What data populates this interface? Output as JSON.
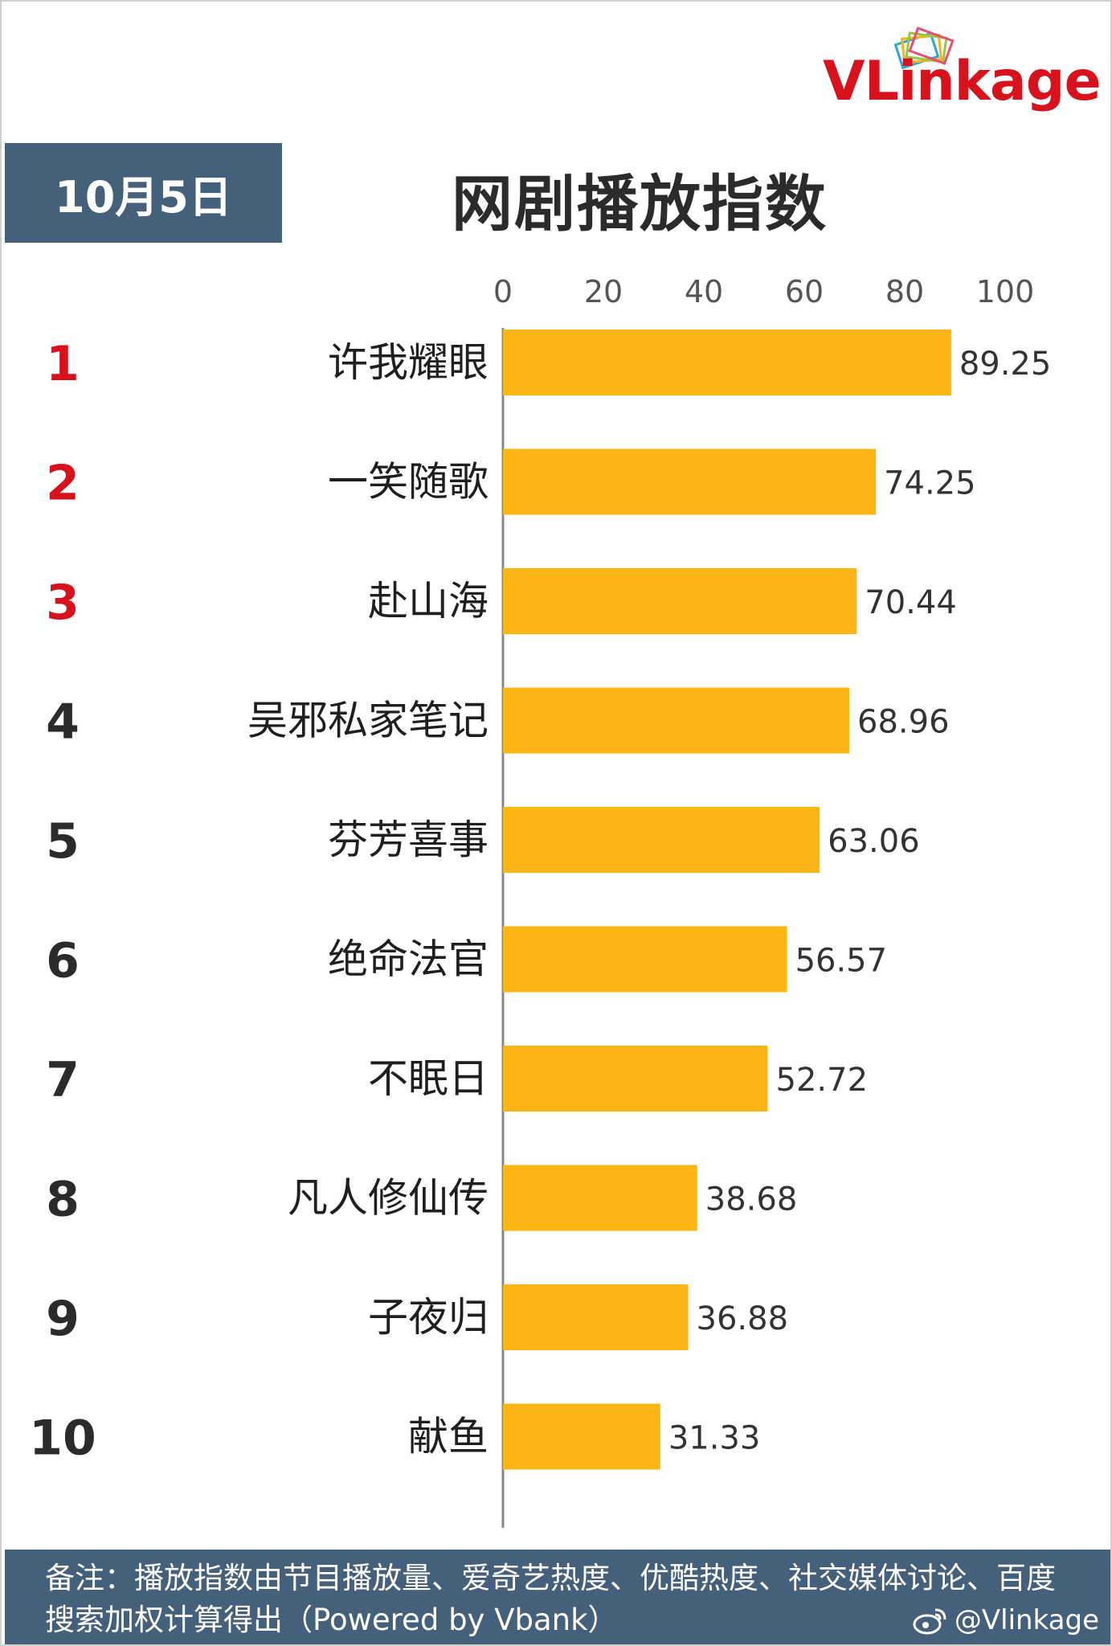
{
  "brand": {
    "logo_text": "VLinkage",
    "accent_red": "#d7121d",
    "header_blue": "#45607a",
    "bar_color": "#fbb514"
  },
  "header": {
    "date": "10月5日",
    "title": "网剧播放指数"
  },
  "chart_data": {
    "type": "bar",
    "orientation": "horizontal",
    "title": "网剧播放指数",
    "xlim": [
      0,
      100
    ],
    "x_ticks": [
      "0",
      "20",
      "40",
      "60",
      "80",
      "100"
    ],
    "grid": false,
    "legend": "none",
    "ranks": [
      "1",
      "2",
      "3",
      "4",
      "5",
      "6",
      "7",
      "8",
      "9",
      "10"
    ],
    "categories": [
      "许我耀眼",
      "一笑随歌",
      "赴山海",
      "吴邪私家笔记",
      "芬芳喜事",
      "绝命法官",
      "不眠日",
      "凡人修仙传",
      "子夜归",
      "献鱼"
    ],
    "values": [
      89.25,
      74.25,
      70.44,
      68.96,
      63.06,
      56.57,
      52.72,
      38.68,
      36.88,
      31.33
    ],
    "value_labels": [
      "89.25",
      "74.25",
      "70.44",
      "68.96",
      "63.06",
      "56.57",
      "52.72",
      "38.68",
      "36.88",
      "31.33"
    ],
    "top_rank_color": "#d7121d",
    "other_rank_color": "#2b2b2b"
  },
  "footer": {
    "note": "备注：播放指数由节目播放量、爱奇艺热度、优酷热度、社交媒体讨论、百度搜索加权计算得出（Powered by Vbank）",
    "handle": "@Vlinkage",
    "icon": "weibo-icon"
  }
}
